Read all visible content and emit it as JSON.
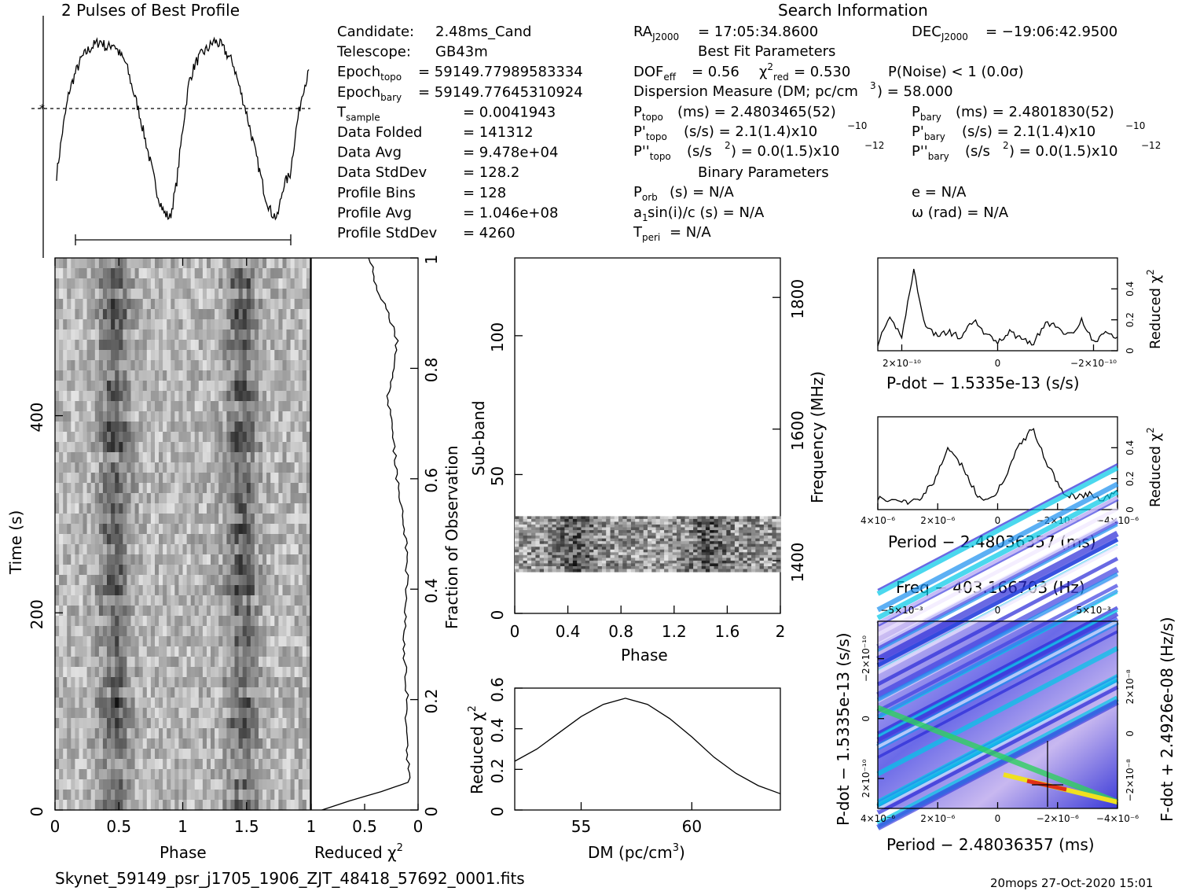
{
  "title_profile": "2 Pulses of Best Profile",
  "title_search": "Search Information",
  "footer_file": "Skynet_59149_psr_j1705_1906_ZJT_48418_57692_0001.fits",
  "footer_stamp": "20mops 27-Oct-2020 15:01",
  "info_left": [
    {
      "label": "Candidate:",
      "value": "2.48ms_Cand"
    },
    {
      "label": "Telescope:",
      "value": "GB43m"
    },
    {
      "label": "Epoch",
      "sub": "topo",
      "value": "= 59149.77989583334"
    },
    {
      "label": "Epoch",
      "sub": "bary",
      "value": "= 59149.77645310924"
    },
    {
      "label": "T",
      "sub": "sample",
      "value": "0.0041943"
    },
    {
      "label": "Data Folded",
      "value": "141312"
    },
    {
      "label": "Data Avg",
      "value": "9.478e+04"
    },
    {
      "label": "Data StdDev",
      "value": "128.2"
    },
    {
      "label": "Profile Bins",
      "value": "128"
    },
    {
      "label": "Profile Avg",
      "value": "1.046e+08"
    },
    {
      "label": "Profile StdDev",
      "value": "4260"
    }
  ],
  "search": {
    "ra": "= 17:05:34.8600",
    "dec": "= −19:06:42.9500",
    "best_fit_header": "Best Fit Parameters",
    "dof": "= 0.56",
    "chi2red": "= 0.530",
    "pnoise": "P(Noise) < 1   (0.0σ)",
    "dm_line": "Dispersion Measure (DM; pc/cm",
    "dm_value": ") = 58.000",
    "ptopo": "(ms) =  2.4803465(52)",
    "pbary": "(ms) =  2.4801830(52)",
    "pdtopo": "(s/s) =  2.1(1.4)x10",
    "pdbary": "(s/s) =  2.1(1.4)x10",
    "pdexp": "−10",
    "pddtopo": "(s/s",
    "pddval": ") = 0.0(1.5)x10",
    "pddexp": "−12",
    "binary_header": "Binary Parameters",
    "porb": "(s) = N/A",
    "asini": "sin(i)/c (s) = N/A",
    "tperi": "= N/A",
    "ecc": "e = N/A",
    "omega": "ω (rad) = N/A"
  },
  "labels": {
    "phase": "Phase",
    "time": "Time (s)",
    "reduced_chi2": "Reduced χ",
    "fraction": "Fraction of Observation",
    "subband": "Sub-band",
    "frequency": "Frequency (MHz)",
    "dm_axis": "DM (pc/cm",
    "pdot_axis": "P-dot − 1.5335e-13 (s/s)",
    "period_axis": "Period − 2.48036357 (ms)",
    "freq_title": "Freq − 403.166703 (Hz)",
    "pdot_left": "P-dot − 1.5335e-13 (s/s)",
    "fdot_right": "F-dot + 2.4926e-08 (Hz/s)"
  },
  "chart_data": [
    {
      "type": "line",
      "name": "profile",
      "x": [
        0,
        0.05,
        0.1,
        0.15,
        0.2,
        0.25,
        0.3,
        0.35,
        0.4,
        0.45,
        0.5,
        0.55,
        0.6,
        0.65,
        0.7,
        0.75,
        0.8,
        0.85,
        0.9,
        0.95,
        1.0,
        1.05,
        1.1,
        1.15,
        1.2,
        1.25,
        1.3,
        1.35,
        1.4,
        1.45,
        1.5,
        1.55,
        1.6,
        1.65,
        1.7,
        1.75,
        1.8,
        1.85,
        1.9,
        1.95,
        2.0
      ],
      "values": [
        0.25,
        0.5,
        0.7,
        0.8,
        0.88,
        0.92,
        0.95,
        0.97,
        0.93,
        0.96,
        0.9,
        0.85,
        0.72,
        0.6,
        0.45,
        0.3,
        0.15,
        0.05,
        0.02,
        0.2,
        0.5,
        0.75,
        0.85,
        0.9,
        0.93,
        0.97,
        0.95,
        0.9,
        0.85,
        0.72,
        0.6,
        0.45,
        0.3,
        0.15,
        0.05,
        0.02,
        0.2,
        0.25,
        0.5,
        0.7,
        0.8
      ]
    },
    {
      "type": "heatmap",
      "name": "time-phase",
      "xlabel": "Phase",
      "ylabel": "Time (s)",
      "xlim": [
        0,
        2
      ],
      "ylim": [
        0,
        560
      ],
      "xticks": [
        "0",
        "0.5",
        "1",
        "1.5"
      ],
      "yticks": [
        "0",
        "200",
        "400"
      ]
    },
    {
      "type": "line",
      "name": "chi2-vs-time",
      "xlabel": "Reduced χ²",
      "xticks": [
        "1",
        "0.5",
        "0"
      ],
      "yticks": [
        "0",
        "0.2",
        "0.4",
        "0.6",
        "0.8",
        "1"
      ],
      "ylabel": "Fraction of Observation",
      "fraction": [
        0,
        0.05,
        0.1,
        0.15,
        0.2,
        0.25,
        0.3,
        0.35,
        0.4,
        0.45,
        0.5,
        0.55,
        0.6,
        0.65,
        0.7,
        0.75,
        0.8,
        0.85,
        0.9,
        0.95,
        1.0
      ],
      "values": [
        0.9,
        0.08,
        0.1,
        0.12,
        0.1,
        0.12,
        0.13,
        0.12,
        0.11,
        0.1,
        0.12,
        0.15,
        0.2,
        0.22,
        0.25,
        0.28,
        0.22,
        0.2,
        0.28,
        0.4,
        0.45
      ]
    },
    {
      "type": "heatmap",
      "name": "subband-phase",
      "xlabel": "Phase",
      "ylabel": "Sub-band",
      "ylabel2": "Frequency (MHz)",
      "xticks": [
        "0",
        "0.4",
        "0.8",
        "1.2",
        "1.6",
        "2"
      ],
      "yticks": [
        "0",
        "50",
        "100"
      ],
      "y2ticks": [
        "1400",
        "1600",
        "1800"
      ],
      "data_bands": [
        15,
        35
      ]
    },
    {
      "type": "line",
      "name": "dm-curve",
      "xlabel": "DM (pc/cm³)",
      "ylabel": "Reduced χ²",
      "xlim": [
        52,
        64
      ],
      "ylim": [
        0,
        0.6
      ],
      "xticks": [
        "55",
        "60"
      ],
      "yticks": [
        "0",
        "0.2",
        "0.4",
        "0.6"
      ],
      "x": [
        52,
        53,
        54,
        55,
        56,
        57,
        58,
        59,
        60,
        61,
        62,
        63,
        64
      ],
      "values": [
        0.24,
        0.3,
        0.38,
        0.46,
        0.52,
        0.55,
        0.52,
        0.45,
        0.36,
        0.26,
        0.18,
        0.12,
        0.08
      ]
    },
    {
      "type": "line",
      "name": "pdot-curve",
      "xlabel": "P-dot − 1.5335e-13 (s/s)",
      "ylabel": "Reduced χ²",
      "xticks": [
        "2×10⁻¹⁰",
        "0",
        "−2×10⁻¹⁰"
      ],
      "yticks": [
        "0",
        "0.2",
        "0.4"
      ],
      "values": [
        0.05,
        0.2,
        0.1,
        0.52,
        0.15,
        0.1,
        0.12,
        0.08,
        0.2,
        0.1,
        0.06,
        0.12,
        0.08,
        0.05,
        0.18,
        0.15,
        0.1,
        0.2,
        0.05,
        0.12,
        0.08
      ]
    },
    {
      "type": "line",
      "name": "period-curve",
      "xlabel": "Period − 2.48036357 (ms)",
      "ylabel": "Reduced χ²",
      "xticks": [
        "4×10⁻⁶",
        "2×10⁻⁶",
        "0",
        "−2×10⁻⁶",
        "−4×10⁻⁶"
      ],
      "yticks": [
        "0",
        "0.2",
        "0.4"
      ],
      "values": [
        0.08,
        0.06,
        0.05,
        0.08,
        0.18,
        0.4,
        0.28,
        0.1,
        0.06,
        0.2,
        0.42,
        0.52,
        0.3,
        0.12,
        0.08,
        0.1,
        0.06,
        0.12
      ]
    },
    {
      "type": "heatmap",
      "name": "period-pdot",
      "title": "Freq − 403.166703 (Hz)",
      "xlabel": "Period − 2.48036357 (ms)",
      "ylabel": "P-dot − 1.5335e-13 (s/s)",
      "ylabel2": "F-dot + 2.4926e-08 (Hz/s)",
      "top_ticks": [
        "−5×10⁻³",
        "0",
        "5×10⁻³"
      ],
      "xticks": [
        "4×10⁻⁶",
        "2×10⁻⁶",
        "0",
        "−2×10⁻⁶",
        "−4×10⁻⁶"
      ],
      "yticks": [
        "−2×10⁻¹⁰",
        "0",
        "2×10⁻¹⁰"
      ],
      "y2ticks": [
        "2×10⁻⁸",
        "0",
        "−2×10⁻⁸"
      ]
    }
  ]
}
